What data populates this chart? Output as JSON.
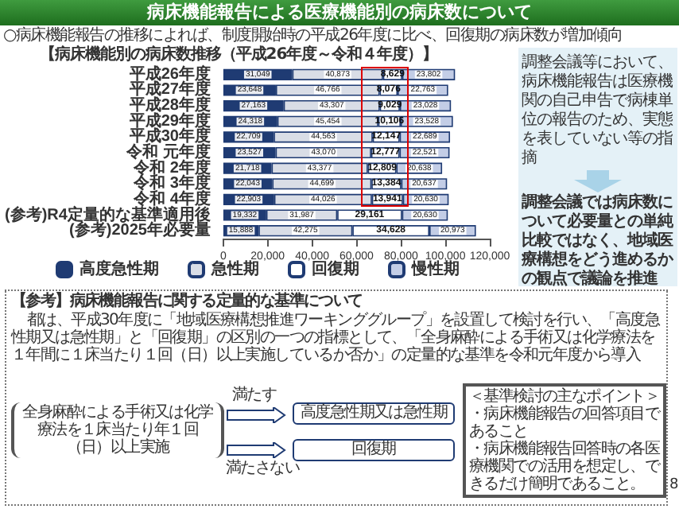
{
  "chart_data": {
    "type": "bar",
    "orientation": "horizontal",
    "stacked": true,
    "grid": false,
    "legend": "bottom",
    "title": "病床機能報告による医療機能別の病床数について",
    "subtitle": "○病床機能報告の推移によれば、制度開始時の平成26年度に比べ、回復期の病床数が増加傾向",
    "categories": [
      "平成26年度",
      "平成27年度",
      "平成28年度",
      "平成29年度",
      "平成30年度",
      "令和 元年度",
      "令和 2年度",
      "令和 3年度",
      "令和 4年度",
      "(参考)R4定量的な基準適用後",
      "(参考)2025年必要量"
    ],
    "series": [
      {
        "name": "高度急性期",
        "color": "#1f3b73",
        "values": [
          31049,
          23648,
          27163,
          24318,
          22709,
          23527,
          21718,
          22043,
          22903,
          19332,
          15888
        ],
        "value_labels": [
          "31,049",
          "23,648",
          "27,163",
          "24,318",
          "22,709",
          "23,527",
          "21,718",
          "22,043",
          "22,903",
          "19,332",
          "15,888"
        ]
      },
      {
        "name": "急性期",
        "color": "#d9dde6",
        "values": [
          40873,
          46766,
          43307,
          45454,
          44563,
          43070,
          43377,
          44699,
          44026,
          31987,
          42275
        ],
        "value_labels": [
          "40,873",
          "46,766",
          "43,307",
          "45,454",
          "44,563",
          "43,070",
          "43,377",
          "44,699",
          "44,026",
          "31,987",
          "42,275"
        ]
      },
      {
        "name": "回復期",
        "color": "#ffffff",
        "values": [
          8629,
          8076,
          9029,
          10106,
          12147,
          12777,
          12809,
          13384,
          13941,
          29161,
          34628
        ],
        "value_labels": [
          "8,629",
          "8,076",
          "9,029",
          "10,106",
          "12,147",
          "12,777",
          "12,809",
          "13,384",
          "13,941",
          "29,161",
          "34,628"
        ]
      },
      {
        "name": "慢性期",
        "color": "#c3cde6",
        "values": [
          23802,
          22763,
          23028,
          23528,
          22689,
          22521,
          20638,
          20637,
          20630,
          20630,
          20973
        ],
        "value_labels": [
          "23,802",
          "22,763",
          "23,028",
          "23,528",
          "22,689",
          "22,521",
          "20,638",
          "20,637",
          "20,630",
          "20,630",
          "20,973"
        ]
      }
    ],
    "xlim": [
      0,
      120000
    ],
    "xticks": [
      0,
      {
        "value": 20000,
        "label": "20,000"
      },
      {
        "value": 40000,
        "label": "40,000"
      },
      {
        "value": 60000,
        "label": "60,000"
      },
      {
        "value": 80000,
        "label": "80,000"
      },
      {
        "value": 100000,
        "label": "100,000"
      },
      {
        "value": 120000,
        "label": "120,000"
      }
    ],
    "annotations": [
      "【病床機能別の病床数推移（平成26年度～令和４年度）】",
      "調整会議等において、病床機能報告は医療機関の自己申告で病棟単位の報告のため、実態を表していない等の指摘",
      "調整会議では病床数について必要量との単純比較ではなく、地域医療構想をどう進めるかの観点で議論を推進",
      "【参考】病床機能報告に関する定量的な基準について",
      "都は、平成30年度に「地域医療構想推進ワーキンググループ」を設置して検討を行い、「高度急性期又は急性期」と「回復期」の区別の一つの指標として、「全身麻酔による手術又は化学療法を１年間に１床当たり１回（日）以上実施しているか否か」の定量的な基準を令和元年度から導入",
      "全身麻酔による手術又は化学療法を１床当たり年１回（日）以上実施",
      "満たす",
      "満たさない",
      "高度急性期又は急性期",
      "回復期",
      "＜基準検討の主なポイント＞",
      "・病床機能報告の回答項目であること",
      "・病床機能報告回答時の各医療機関での活用を想定し、できるだけ簡明であること。",
      "8"
    ]
  }
}
